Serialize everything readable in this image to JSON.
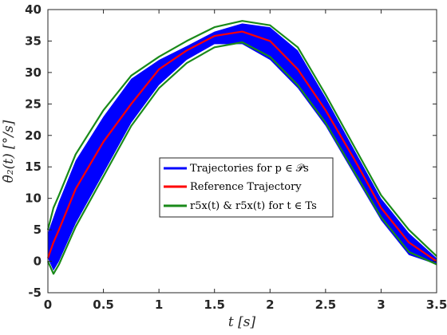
{
  "chart_data": {
    "type": "area",
    "xlabel": "t [s]",
    "ylabel": "θ̇₂(t) [°/s]",
    "xlim": [
      0,
      3.5
    ],
    "ylim": [
      -5,
      40
    ],
    "x_ticks": [
      "0",
      "0.5",
      "1",
      "1.5",
      "2",
      "2.5",
      "3",
      "3.5"
    ],
    "y_ticks": [
      "-5",
      "0",
      "5",
      "10",
      "15",
      "20",
      "25",
      "30",
      "35",
      "40"
    ],
    "grid": false,
    "legend_position": "center",
    "colors": {
      "band": "#0000ff",
      "reference": "#ff0000",
      "bounds": "#1a8a1a"
    },
    "series": [
      {
        "name": "Trajectories for p ∈ 𝒫s",
        "kind": "band",
        "x": [
          0,
          0.05,
          0.1,
          0.25,
          0.5,
          0.75,
          1.0,
          1.25,
          1.5,
          1.75,
          2.0,
          2.25,
          2.5,
          2.75,
          3.0,
          3.25,
          3.5
        ],
        "lower": [
          0.5,
          -1.5,
          0,
          6,
          14,
          22,
          28,
          32,
          34.5,
          34.5,
          32,
          27.5,
          21.5,
          14,
          6.5,
          1,
          -0.5
        ],
        "upper": [
          4.5,
          7,
          9.5,
          16,
          23,
          29,
          32,
          34.2,
          36.5,
          37.8,
          37.2,
          33.5,
          26,
          18,
          10,
          4.5,
          0.5
        ]
      },
      {
        "name": "Reference Trajectory",
        "kind": "line",
        "x": [
          0,
          0.05,
          0.1,
          0.25,
          0.5,
          0.75,
          1.0,
          1.25,
          1.5,
          1.75,
          2.0,
          2.25,
          2.5,
          2.75,
          3.0,
          3.25,
          3.5
        ],
        "y": [
          0.5,
          3,
          5,
          11.5,
          19,
          25,
          30.5,
          33.5,
          35.8,
          36.5,
          35,
          30.5,
          24,
          16.5,
          8.5,
          3,
          0
        ]
      },
      {
        "name": "r5x(t) & r5x(t) for t ∈ Ts",
        "kind": "bounds",
        "x": [
          0,
          0.05,
          0.1,
          0.25,
          0.5,
          0.75,
          1.0,
          1.25,
          1.5,
          1.75,
          2.0,
          2.25,
          2.5,
          2.75,
          3.0,
          3.25,
          3.5
        ],
        "lower": [
          0,
          -2,
          -0.5,
          5.5,
          13.5,
          21.5,
          27.5,
          31.5,
          34,
          34.8,
          32.5,
          28,
          22,
          14.5,
          7,
          1.5,
          -0.5
        ],
        "upper": [
          5,
          8.5,
          10.5,
          17,
          24,
          29.5,
          32.5,
          35,
          37.2,
          38.2,
          37.5,
          34,
          26.5,
          18.5,
          10.5,
          5,
          0.8
        ]
      }
    ],
    "legend": [
      {
        "label": "Trajectories for p ∈ 𝒫s",
        "series": 0
      },
      {
        "label": "Reference Trajectory",
        "series": 1
      },
      {
        "label": "r5x(t) & r5x(t) for t ∈ Ts",
        "series": 2
      }
    ]
  }
}
